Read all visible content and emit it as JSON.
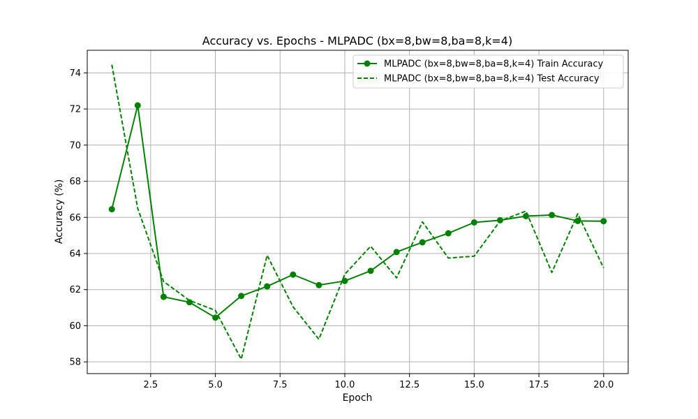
{
  "chart_data": {
    "type": "line",
    "title": "Accuracy vs. Epochs - MLPADC (bx=8,bw=8,ba=8,k=4)",
    "xlabel": "Epoch",
    "ylabel": "Accuracy (%)",
    "xlim": [
      0.05,
      20.95
    ],
    "ylim": [
      57.35,
      75.25
    ],
    "xticks": [
      2.5,
      5.0,
      7.5,
      10.0,
      12.5,
      15.0,
      17.5,
      20.0
    ],
    "xtick_labels": [
      "2.5",
      "5.0",
      "7.5",
      "10.0",
      "12.5",
      "15.0",
      "17.5",
      "20.0"
    ],
    "yticks": [
      58,
      60,
      62,
      64,
      66,
      68,
      70,
      72,
      74
    ],
    "ytick_labels": [
      "58",
      "60",
      "62",
      "64",
      "66",
      "68",
      "70",
      "72",
      "74"
    ],
    "grid": true,
    "legend_position": "top-right",
    "x": [
      1,
      2,
      3,
      4,
      5,
      6,
      7,
      8,
      9,
      10,
      11,
      12,
      13,
      14,
      15,
      16,
      17,
      18,
      19,
      20
    ],
    "series": [
      {
        "name": "MLPADC (bx=8,bw=8,ba=8,k=4) Train Accuracy",
        "color": "#008000",
        "style": "solid",
        "marker": "circle",
        "values": [
          66.45,
          72.2,
          61.6,
          61.3,
          60.45,
          61.65,
          62.18,
          62.83,
          62.25,
          62.48,
          63.04,
          64.08,
          64.62,
          65.12,
          65.72,
          65.84,
          66.07,
          66.13,
          65.8,
          65.79
        ]
      },
      {
        "name": "MLPADC (bx=8,bw=8,ba=8,k=4) Test Accuracy",
        "color": "#008000",
        "style": "dashed",
        "marker": "none",
        "values": [
          74.45,
          66.5,
          62.45,
          61.4,
          60.85,
          58.15,
          63.9,
          61.05,
          59.25,
          62.85,
          64.4,
          62.65,
          65.75,
          63.75,
          63.85,
          65.8,
          66.35,
          62.95,
          66.2,
          63.2
        ]
      }
    ]
  }
}
